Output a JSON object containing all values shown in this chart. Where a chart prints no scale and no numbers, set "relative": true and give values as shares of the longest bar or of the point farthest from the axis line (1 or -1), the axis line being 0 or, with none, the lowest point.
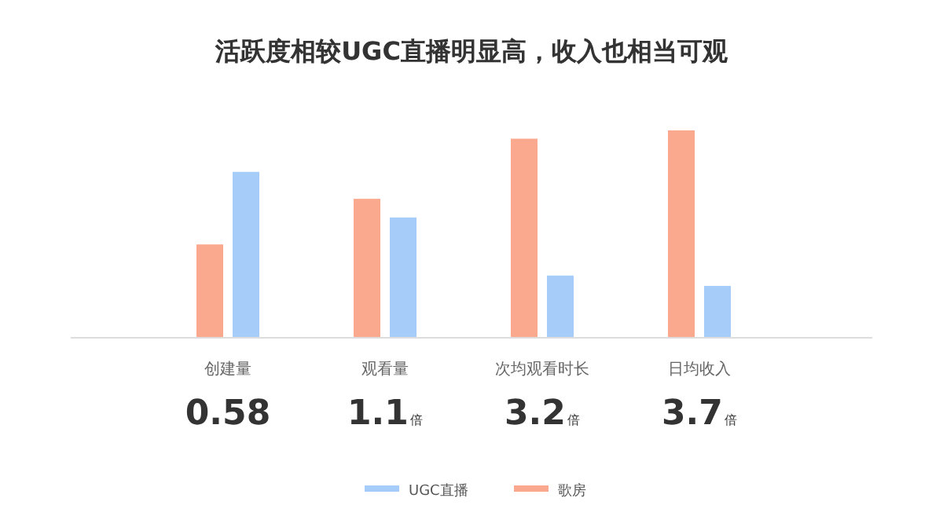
{
  "chart_data": {
    "type": "bar",
    "title": "活跃度相较UGC直播明显高，收入也相当可观",
    "relative": true,
    "categories": [
      "创建量",
      "观看量",
      "次均观看时长",
      "日均收入"
    ],
    "series": [
      {
        "name": "UGC直播",
        "color": "#a6cdfa",
        "values": [
          0.8,
          0.58,
          0.3,
          0.25
        ]
      },
      {
        "name": "歌房",
        "color": "#fba98e",
        "values": [
          0.45,
          0.67,
          0.96,
          1.0
        ]
      }
    ],
    "annotations": [
      "0.58",
      "1.1倍",
      "3.2倍",
      "3.7倍"
    ],
    "legend": "bottom"
  }
}
